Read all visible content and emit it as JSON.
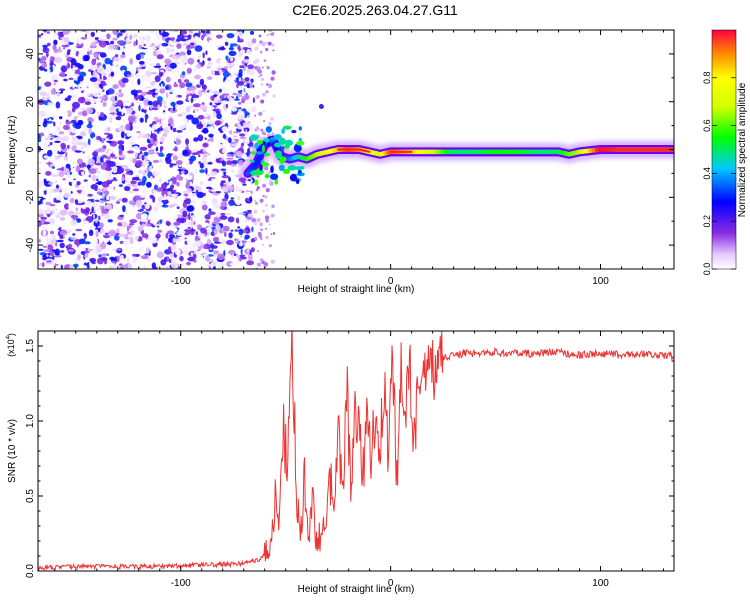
{
  "title": "C2E6.2025.263.04.27.G11",
  "chart_data": [
    {
      "type": "heatmap",
      "title": "C2E6.2025.263.04.27.G11",
      "xlabel": "Height of straight line (km)",
      "ylabel": "Frequency (Hz)",
      "xlim": [
        -168,
        135
      ],
      "ylim": [
        -50,
        50
      ],
      "xticks": [
        -100,
        0,
        100
      ],
      "xtick_labels": [
        "-100",
        "0",
        "100"
      ],
      "yticks": [
        -40,
        -20,
        0,
        20,
        40
      ],
      "ytick_labels": [
        "-40",
        "-20",
        "0",
        "20",
        "40"
      ],
      "grid": false,
      "noise_region_x": [
        -168,
        -65
      ],
      "ridge": {
        "x": [
          -68,
          -64,
          -60,
          -56,
          -52,
          -48,
          -44,
          -40,
          -35,
          -30,
          -25,
          -20,
          -15,
          -10,
          -5,
          0,
          10,
          20,
          30,
          40,
          50,
          60,
          70,
          80,
          85,
          90,
          100,
          110,
          120,
          135
        ],
        "freq": [
          -10,
          -6,
          2,
          4,
          -3,
          -4,
          -3,
          -4,
          -2,
          -1,
          0,
          0,
          0,
          -1,
          -2,
          -1,
          -1,
          -1,
          -1,
          -1,
          -1,
          -1,
          -1,
          -1,
          -2,
          -1,
          0,
          0,
          0,
          0
        ],
        "amplitude": [
          0.35,
          0.3,
          0.3,
          0.35,
          0.3,
          0.35,
          0.45,
          0.55,
          0.65,
          0.75,
          0.85,
          0.95,
          0.9,
          0.8,
          0.7,
          0.95,
          0.85,
          0.7,
          0.5,
          0.5,
          0.55,
          0.55,
          0.5,
          0.5,
          0.6,
          0.65,
          1.0,
          0.95,
          0.95,
          0.95
        ]
      },
      "colorbar": {
        "label": "Normalized spectral amplitude",
        "ticks": [
          0.0,
          0.2,
          0.4,
          0.6,
          0.8
        ],
        "tick_labels": [
          "0.0",
          "0.2",
          "0.4",
          "0.6",
          "0.8"
        ],
        "range": [
          0,
          1
        ]
      }
    },
    {
      "type": "line",
      "xlabel": "Height of straight line (km)",
      "ylabel": "SNR (10 * v/v)",
      "scale_label": "(x10",
      "scale_exponent": "4",
      "scale_suffix": ")",
      "xlim": [
        -168,
        135
      ],
      "ylim": [
        0.0,
        1.6
      ],
      "xticks": [
        -100,
        0,
        100
      ],
      "xtick_labels": [
        "-100",
        "0",
        "100"
      ],
      "yticks": [
        0.0,
        0.5,
        1.0,
        1.5
      ],
      "ytick_labels": [
        "0.0",
        "0.5",
        "1.0",
        "1.5"
      ],
      "series": [
        {
          "name": "SNR",
          "color": "#ee3333",
          "x": [
            -168,
            -150,
            -130,
            -110,
            -90,
            -70,
            -62,
            -58,
            -55,
            -53,
            -51,
            -49,
            -47,
            -45,
            -43,
            -41,
            -39,
            -37,
            -35,
            -33,
            -31,
            -29,
            -27,
            -25,
            -23,
            -21,
            -19,
            -17,
            -15,
            -13,
            -11,
            -9,
            -7,
            -5,
            -3,
            -1,
            1,
            3,
            5,
            7,
            9,
            11,
            13,
            15,
            17,
            19,
            21,
            25,
            30,
            35,
            40,
            50,
            60,
            70,
            80,
            90,
            100,
            110,
            120,
            135
          ],
          "y": [
            0.02,
            0.03,
            0.03,
            0.03,
            0.04,
            0.05,
            0.08,
            0.14,
            0.45,
            0.3,
            0.95,
            0.7,
            1.55,
            0.6,
            0.25,
            0.65,
            0.2,
            0.5,
            0.12,
            0.3,
            0.18,
            0.6,
            0.4,
            0.9,
            0.45,
            1.28,
            0.55,
            1.05,
            0.9,
            0.65,
            1.2,
            0.7,
            1.15,
            0.85,
            1.25,
            0.8,
            1.45,
            0.55,
            1.3,
            1.0,
            1.35,
            0.95,
            1.1,
            1.2,
            1.28,
            1.33,
            1.37,
            1.42,
            1.44,
            1.45,
            1.45,
            1.46,
            1.45,
            1.45,
            1.46,
            1.44,
            1.45,
            1.44,
            1.45,
            1.43
          ]
        }
      ]
    }
  ]
}
